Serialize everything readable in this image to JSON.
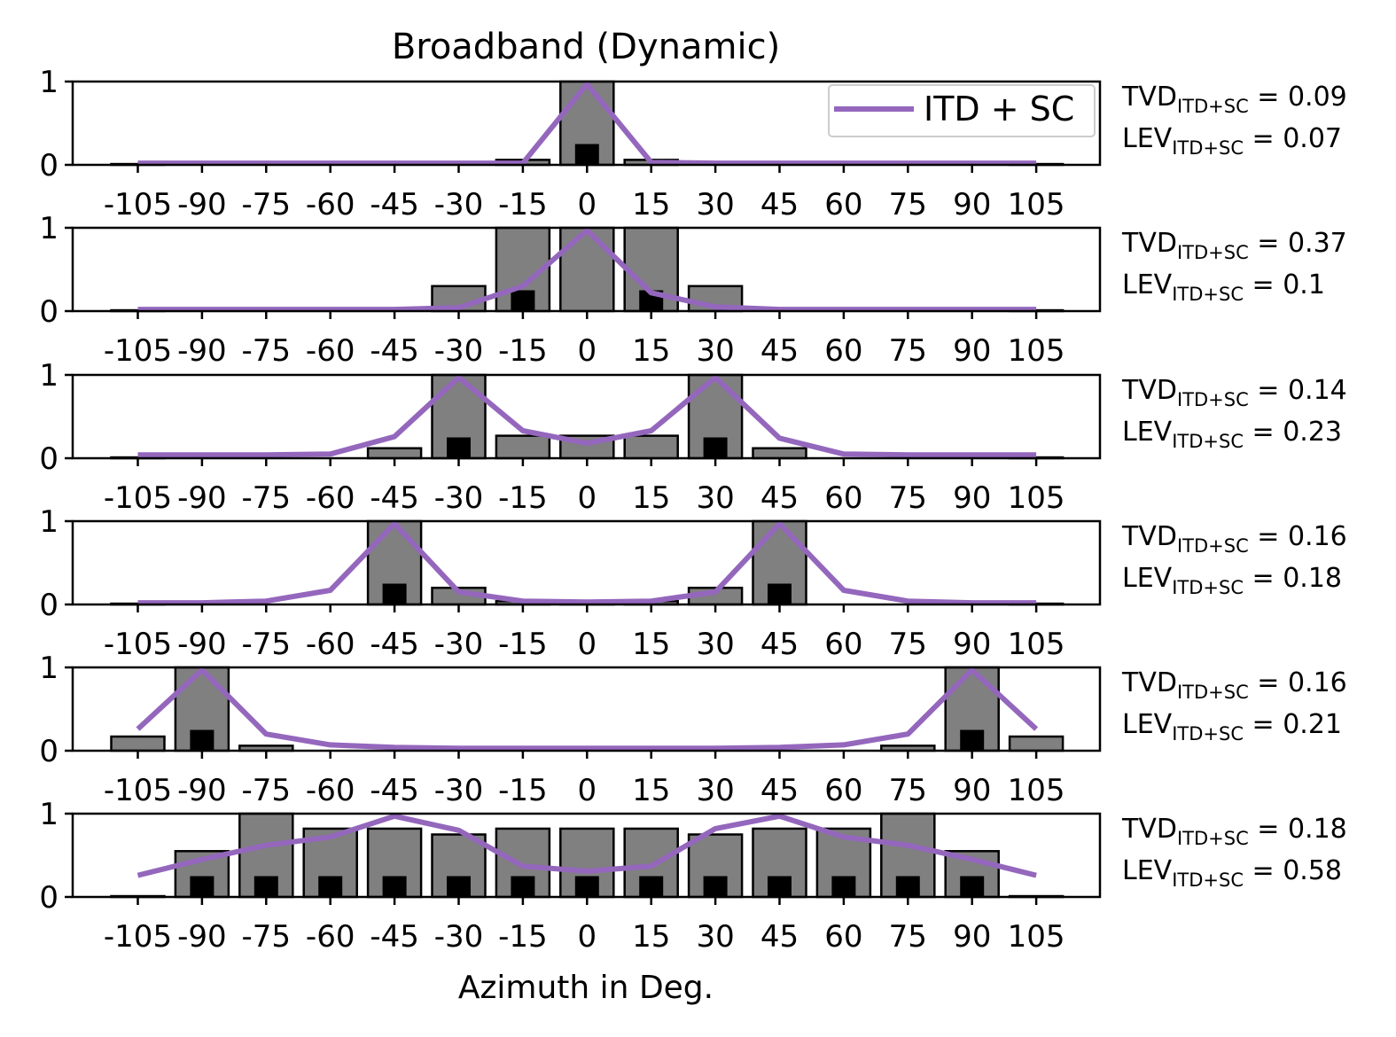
{
  "title": "Broadband (Dynamic)",
  "xlabel": "Azimuth in Deg.",
  "legend_label": "ITD + SC",
  "colors": {
    "bar": "#808080",
    "small_bar": "#000000",
    "line": "#9467bd",
    "edge": "#000000"
  },
  "chart_data": {
    "type": "bar",
    "title": "Broadband (Dynamic)",
    "xlabel": "Azimuth in Deg.",
    "categories": [
      -105,
      -90,
      -75,
      -60,
      -45,
      -30,
      -15,
      0,
      15,
      30,
      45,
      60,
      75,
      90,
      105
    ],
    "tick_labels": [
      "-105",
      "-90",
      "-75",
      "-60",
      "-45",
      "-30",
      "-15",
      "0",
      "15",
      "30",
      "45",
      "60",
      "75",
      "90",
      "105"
    ],
    "ylim": [
      0,
      1
    ],
    "yticks": [
      "0",
      "1"
    ],
    "legend": {
      "entries": [
        "ITD + SC"
      ],
      "placement": "upper right of first panel"
    },
    "panels": [
      {
        "bars": [
          0.01,
          0,
          0,
          0,
          0,
          0,
          0.06,
          1.0,
          0.06,
          0,
          0,
          0,
          0,
          0,
          0.01
        ],
        "small_bars": [
          0,
          0,
          0,
          0,
          0,
          0,
          0,
          0.25,
          0,
          0,
          0,
          0,
          0,
          0,
          0
        ],
        "line": [
          0.02,
          0.02,
          0.02,
          0.02,
          0.02,
          0.02,
          0.02,
          0.97,
          0.03,
          0.02,
          0.02,
          0.02,
          0.02,
          0.02,
          0.02
        ],
        "tvd_value": "0.09",
        "lev_value": "0.07"
      },
      {
        "bars": [
          0.01,
          0,
          0,
          0,
          0,
          0.3,
          1.0,
          1.0,
          1.0,
          0.3,
          0,
          0,
          0,
          0,
          0.01
        ],
        "small_bars": [
          0,
          0,
          0,
          0,
          0,
          0,
          0.25,
          0,
          0.25,
          0,
          0,
          0,
          0,
          0,
          0
        ],
        "line": [
          0.02,
          0.02,
          0.02,
          0.02,
          0.02,
          0.04,
          0.3,
          0.97,
          0.22,
          0.05,
          0.02,
          0.02,
          0.02,
          0.02,
          0.02
        ],
        "tvd_value": "0.37",
        "lev_value": "0.1"
      },
      {
        "bars": [
          0.01,
          0,
          0,
          0,
          0.12,
          1.0,
          0.27,
          0.27,
          0.27,
          1.0,
          0.12,
          0,
          0,
          0,
          0.01
        ],
        "small_bars": [
          0,
          0,
          0,
          0,
          0,
          0.25,
          0,
          0,
          0,
          0.25,
          0,
          0,
          0,
          0,
          0
        ],
        "line": [
          0.04,
          0.04,
          0.04,
          0.05,
          0.26,
          0.97,
          0.33,
          0.18,
          0.33,
          0.97,
          0.24,
          0.05,
          0.04,
          0.04,
          0.04
        ],
        "tvd_value": "0.14",
        "lev_value": "0.23"
      },
      {
        "bars": [
          0.01,
          0,
          0,
          0,
          1.0,
          0.2,
          0.04,
          0.04,
          0.04,
          0.2,
          1.0,
          0,
          0,
          0,
          0.01
        ],
        "small_bars": [
          0,
          0,
          0,
          0,
          0.25,
          0,
          0,
          0,
          0,
          0,
          0.25,
          0,
          0,
          0,
          0
        ],
        "line": [
          0.02,
          0.02,
          0.04,
          0.17,
          0.97,
          0.15,
          0.04,
          0.03,
          0.04,
          0.15,
          0.97,
          0.17,
          0.04,
          0.02,
          0.02
        ],
        "tvd_value": "0.16",
        "lev_value": "0.18"
      },
      {
        "bars": [
          0.17,
          1.0,
          0.06,
          0,
          0,
          0,
          0,
          0,
          0,
          0,
          0,
          0,
          0.06,
          1.0,
          0.17
        ],
        "small_bars": [
          0,
          0.25,
          0,
          0,
          0,
          0,
          0,
          0,
          0,
          0,
          0,
          0,
          0,
          0.25,
          0
        ],
        "line": [
          0.26,
          0.97,
          0.2,
          0.07,
          0.04,
          0.03,
          0.03,
          0.03,
          0.03,
          0.03,
          0.04,
          0.07,
          0.2,
          0.97,
          0.26
        ],
        "tvd_value": "0.16",
        "lev_value": "0.21"
      },
      {
        "bars": [
          0.01,
          0.55,
          1.0,
          0.82,
          0.82,
          0.75,
          0.82,
          0.82,
          0.82,
          0.75,
          0.82,
          0.82,
          1.0,
          0.55,
          0.01
        ],
        "small_bars": [
          0,
          0.25,
          0.25,
          0.25,
          0.25,
          0.25,
          0.25,
          0.25,
          0.25,
          0.25,
          0.25,
          0.25,
          0.25,
          0.25,
          0
        ],
        "line": [
          0.26,
          0.45,
          0.62,
          0.72,
          0.97,
          0.8,
          0.37,
          0.31,
          0.37,
          0.82,
          0.97,
          0.72,
          0.62,
          0.45,
          0.26
        ],
        "tvd_value": "0.18",
        "lev_value": "0.58"
      }
    ],
    "tvd_label": "TVD",
    "lev_label": "LEV",
    "metric_subscript": "ITD+SC"
  }
}
